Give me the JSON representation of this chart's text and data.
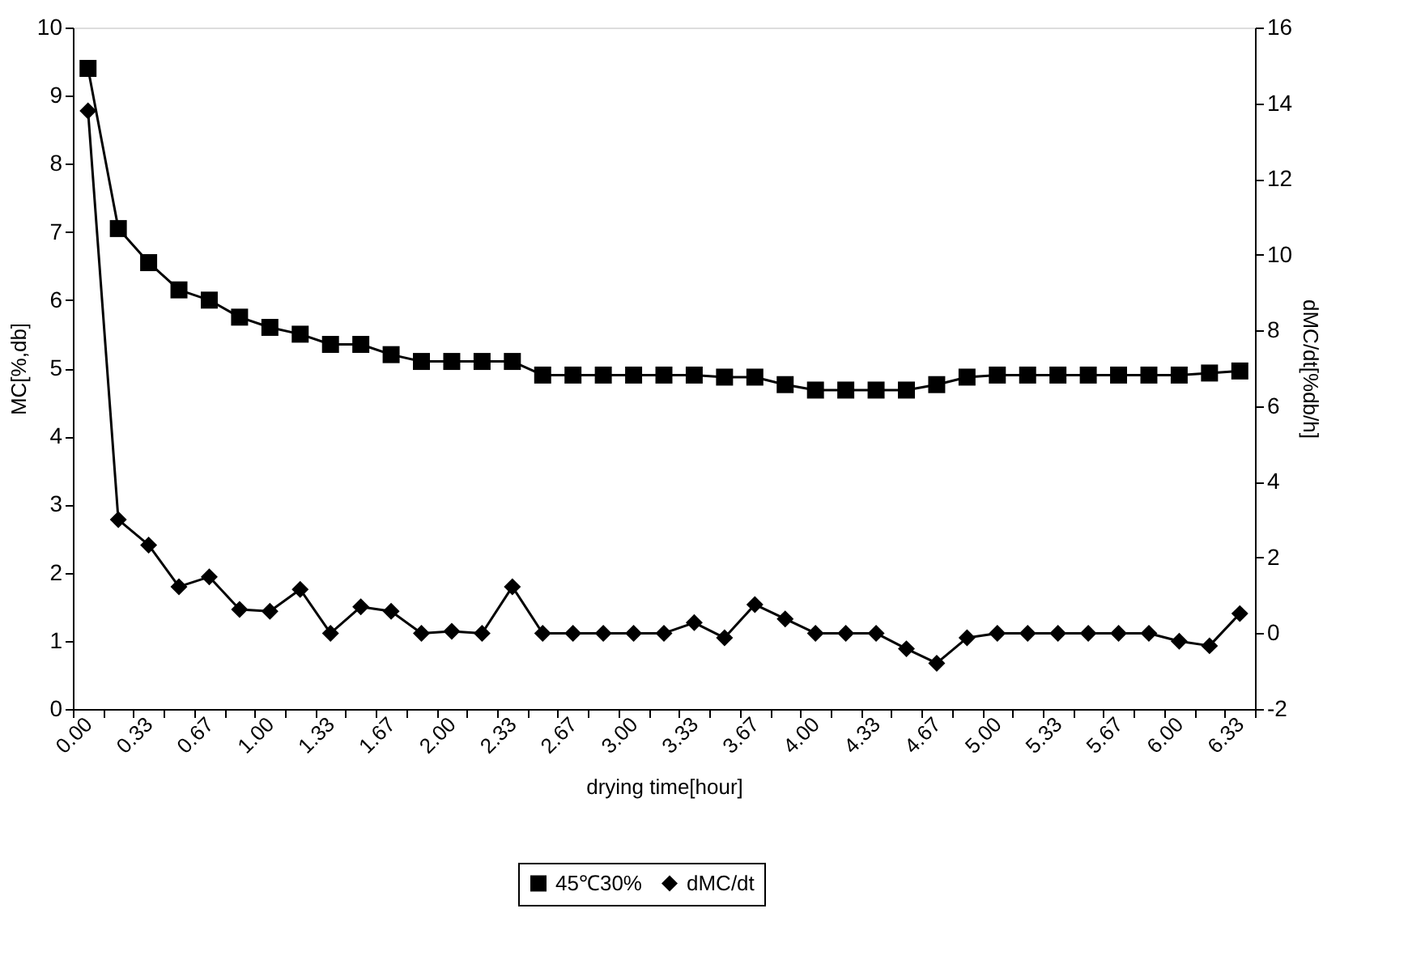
{
  "chart_data": {
    "type": "line",
    "xlabel": "drying time[hour]",
    "ylabel": "MC[%,db]",
    "y2label": "dMC/dt[%db/h]",
    "categories": [
      "0.00",
      null,
      "0.33",
      null,
      "0.67",
      null,
      "1.00",
      null,
      "1.33",
      null,
      "1.67",
      null,
      "2.00",
      null,
      "2.33",
      null,
      "2.67",
      null,
      "3.00",
      null,
      "3.33",
      null,
      "3.67",
      null,
      "4.00",
      null,
      "4.33",
      null,
      "4.67",
      null,
      "5.00",
      null,
      "5.33",
      null,
      "5.67",
      null,
      "6.00",
      null,
      "6.33"
    ],
    "ylim": [
      0,
      10
    ],
    "yticks": [
      0,
      1,
      2,
      3,
      4,
      5,
      6,
      7,
      8,
      9,
      10
    ],
    "y2lim": [
      -2,
      16
    ],
    "y2ticks": [
      -2,
      0,
      2,
      4,
      6,
      8,
      10,
      12,
      14,
      16
    ],
    "grid": false,
    "legend": "bottom",
    "line_style": "solid",
    "series": [
      {
        "name": "45℃30%",
        "color": "#000000",
        "marker": "square",
        "values": [
          9.4,
          7.05,
          6.55,
          6.15,
          6.0,
          5.75,
          5.6,
          5.5,
          5.35,
          5.35,
          5.2,
          5.1,
          5.1,
          5.1,
          5.1,
          4.9,
          4.9,
          4.9,
          4.9,
          4.9,
          4.9,
          4.87,
          4.87,
          4.76,
          4.68,
          4.68,
          4.68,
          4.68,
          4.76,
          4.87,
          4.9,
          4.9,
          4.9,
          4.9,
          4.9,
          4.9,
          4.9,
          4.93,
          4.96
        ]
      },
      {
        "name": "dMC/dt",
        "color": "#000000",
        "marker": "diamond",
        "axis": "y2",
        "values": [
          13.8,
          3.0,
          2.33,
          1.23,
          1.49,
          0.63,
          0.58,
          1.16,
          0.0,
          0.7,
          0.58,
          0.0,
          0.05,
          0.0,
          1.23,
          0.0,
          0.0,
          0.0,
          0.0,
          0.0,
          0.28,
          -0.12,
          0.76,
          0.38,
          0.0,
          0.0,
          0.0,
          -0.41,
          -0.79,
          -0.12,
          0.0,
          0.0,
          0.0,
          0.0,
          0.0,
          0.0,
          -0.21,
          -0.33,
          0.52
        ]
      }
    ]
  }
}
